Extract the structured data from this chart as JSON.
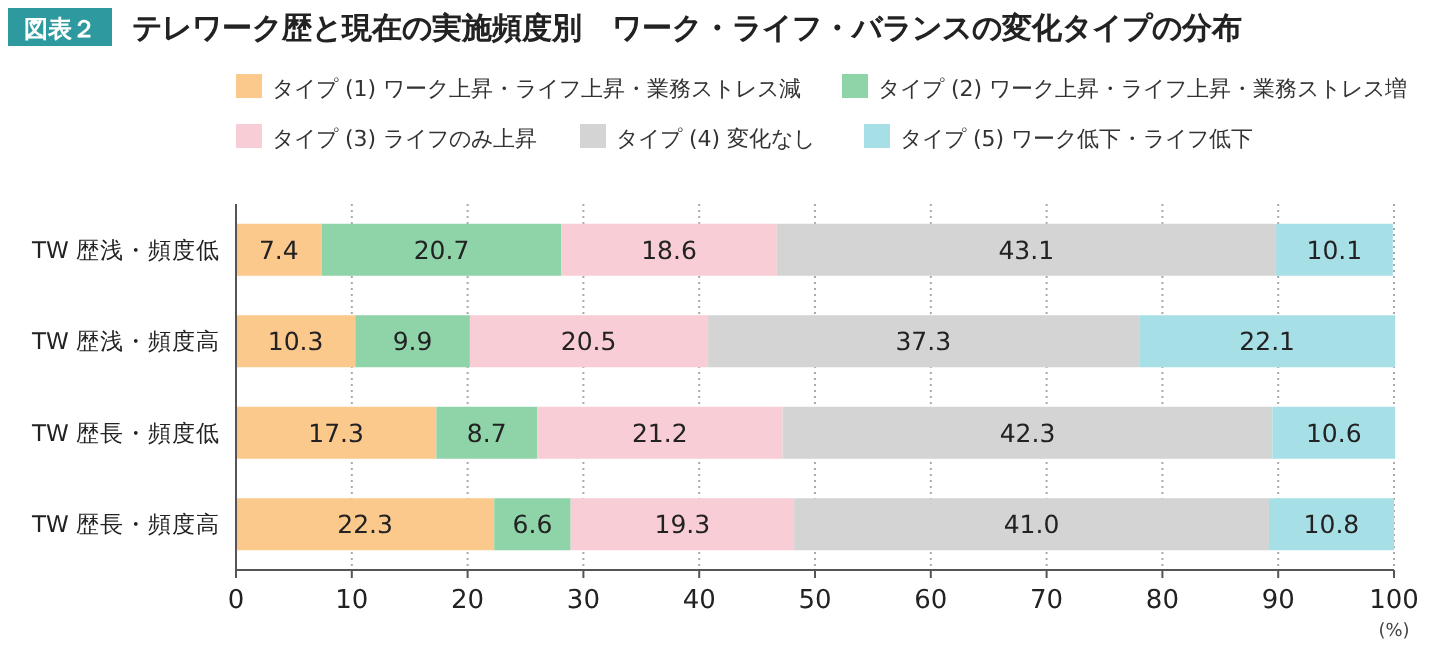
{
  "chart_data": {
    "type": "bar",
    "orientation": "horizontal",
    "stacked": true,
    "title": "テレワーク歴と現在の実施頻度別　ワーク・ライフ・バランスの変化タイプの分布",
    "annotations": [
      "図表２"
    ],
    "xlabel": "(%)",
    "categories": [
      "TW 歴浅・頻度低",
      "TW 歴浅・頻度高",
      "TW 歴長・頻度低",
      "TW 歴長・頻度高"
    ],
    "series": [
      {
        "name": "タイプ (1) ワーク上昇・ライフ上昇・業務ストレス減",
        "color": "#fbc98c",
        "values": [
          7.4,
          10.3,
          17.3,
          22.3
        ],
        "value_labels": [
          "7.4",
          "10.3",
          "17.3",
          "22.3"
        ]
      },
      {
        "name": "タイプ (2) ワーク上昇・ライフ上昇・業務ストレス増",
        "color": "#8fd4a8",
        "values": [
          20.7,
          9.9,
          8.7,
          6.6
        ],
        "value_labels": [
          "20.7",
          "9.9",
          "8.7",
          "6.6"
        ]
      },
      {
        "name": "タイプ (3) ライフのみ上昇",
        "color": "#f8cdd5",
        "values": [
          18.6,
          20.5,
          21.2,
          19.3
        ],
        "value_labels": [
          "18.6",
          "20.5",
          "21.2",
          "19.3"
        ]
      },
      {
        "name": "タイプ (4) 変化なし",
        "color": "#d4d4d4",
        "values": [
          43.1,
          37.3,
          42.3,
          41.0
        ],
        "value_labels": [
          "43.1",
          "37.3",
          "42.3",
          "41.0"
        ]
      },
      {
        "name": "タイプ (5) ワーク低下・ライフ低下",
        "color": "#a7dfe7",
        "values": [
          10.1,
          22.1,
          10.6,
          10.8
        ],
        "value_labels": [
          "10.1",
          "22.1",
          "10.6",
          "10.8"
        ]
      }
    ],
    "xlim": [
      0,
      100
    ],
    "xticks": [
      0,
      10,
      20,
      30,
      40,
      50,
      60,
      70,
      80,
      90,
      100
    ],
    "grid": "x",
    "legend": "top"
  }
}
